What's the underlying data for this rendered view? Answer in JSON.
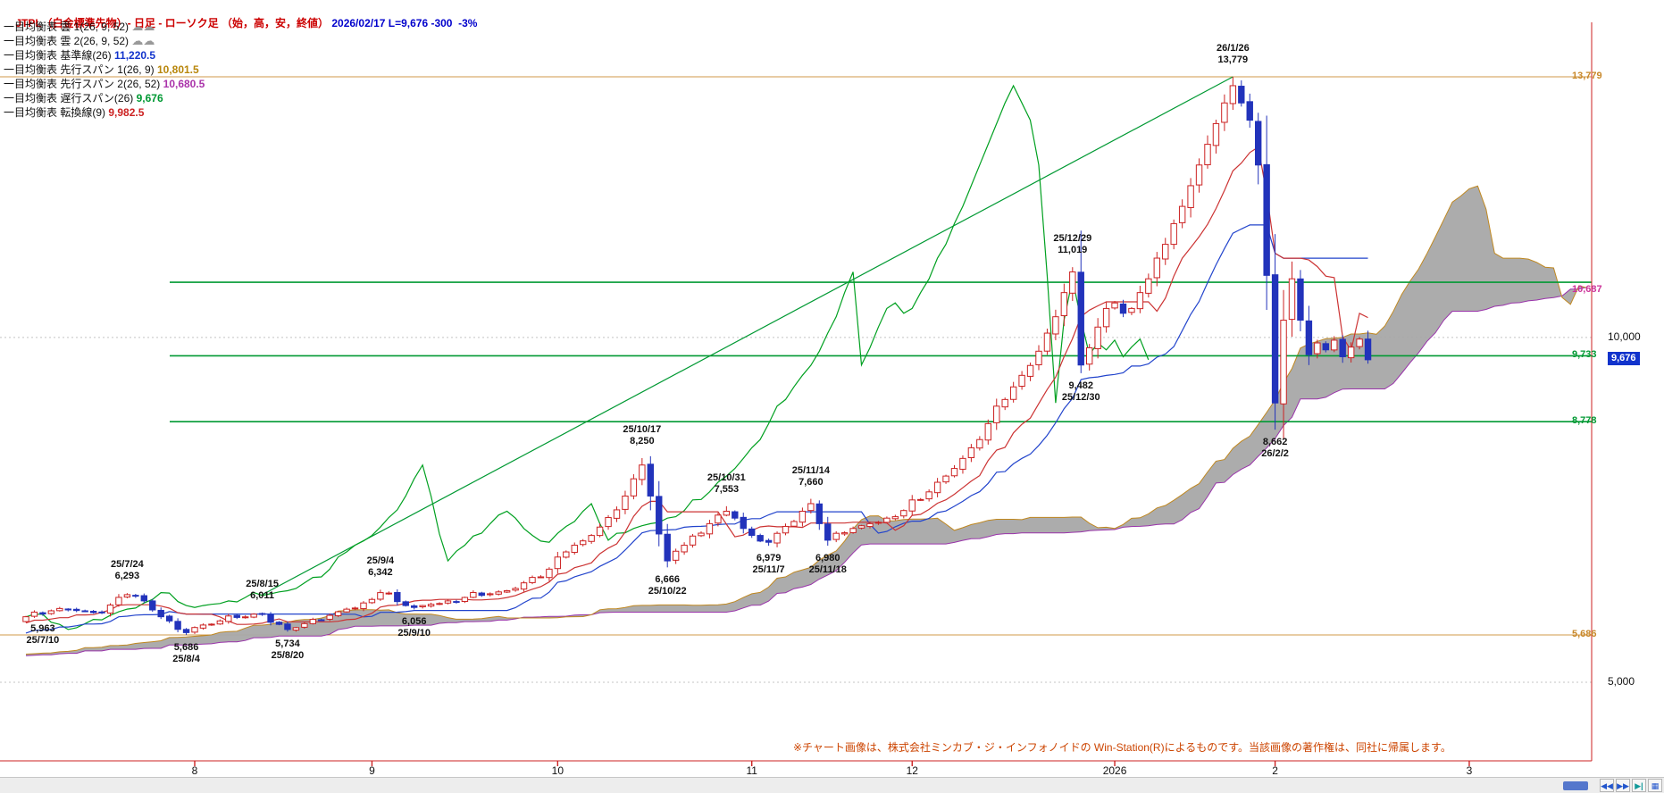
{
  "header": {
    "title_left": "JTPL（白金標準先物）- 日足 - ローソク足 （始，高，安，終値） ",
    "title_right": "2026/02/17 L=9,676 -300  -3%",
    "title_color": "#cc0000",
    "info_color": "#0000cc"
  },
  "legend": {
    "items": [
      {
        "label": "一目均衡表 雲 1(26, 9, 52) ",
        "value": "",
        "value_color": "#999999",
        "icon": "cloud"
      },
      {
        "label": "一目均衡表 雲 2(26, 9, 52) ",
        "value": "",
        "value_color": "#999999",
        "icon": "cloud"
      },
      {
        "label": "一目均衡表 基準線(26) ",
        "value": "11,220.5",
        "value_color": "#1133cc",
        "icon": ""
      },
      {
        "label": "一目均衡表 先行スパン 1(26, 9) ",
        "value": "10,801.5",
        "value_color": "#b8860b",
        "icon": ""
      },
      {
        "label": "一目均衡表 先行スパン 2(26, 52) ",
        "value": "10,680.5",
        "value_color": "#aa33aa",
        "icon": ""
      },
      {
        "label": "一目均衡表 遅行スパン(26) ",
        "value": "9,676",
        "value_color": "#009933",
        "icon": ""
      },
      {
        "label": "一目均衡表 転換線(9) ",
        "value": "9,982.5",
        "value_color": "#cc2222",
        "icon": ""
      }
    ]
  },
  "chart_data": {
    "type": "candlestick",
    "title": "JTPL 白金標準先物 日足 ローソク足",
    "indicator": "一目均衡表 (Ichimoku)",
    "ichimoku_params": {
      "tenkan": 9,
      "kijun": 26,
      "senkou_b": 52,
      "shift": 26
    },
    "last": {
      "date": "2026/02/17",
      "close": 9676,
      "change": -300,
      "change_pct": "-3%"
    },
    "days_total": 160,
    "future_days": 26,
    "colors": {
      "up_candle": "#cc2222",
      "down_candle": "#2233bb",
      "tenkan": "#cc3333",
      "kijun": "#2244cc",
      "chikou": "#00a020",
      "senkou_a": "#c08820",
      "senkou_b": "#9933aa",
      "cloud_fill": "#a8a8a8",
      "green_line": "#009933",
      "range_line": "#d29a4a",
      "axis_red": "#cc2222"
    },
    "y_axis": {
      "ticks": [
        {
          "label": "10,000",
          "price": 10000
        },
        {
          "label": "5,000",
          "price": 5000
        }
      ],
      "grid": "dotted"
    },
    "x_axis": {
      "ticks": [
        {
          "label": "8",
          "day": 20
        },
        {
          "label": "9",
          "day": 41
        },
        {
          "label": "10",
          "day": 63
        },
        {
          "label": "11",
          "day": 86
        },
        {
          "label": "12",
          "day": 105
        },
        {
          "label": "2026",
          "day": 129
        },
        {
          "label": "2",
          "day": 148
        },
        {
          "label": "3",
          "day": 171
        }
      ]
    },
    "range_lines": [
      {
        "price": 13779
      },
      {
        "price": 5686
      }
    ],
    "h_lines": [
      {
        "price": 10800
      },
      {
        "price": 9733
      },
      {
        "price": 8778
      }
    ],
    "trend_line": {
      "from_day": 28,
      "from_price": 6269,
      "to_day": 143,
      "to_price": 13779
    },
    "right_labels": [
      {
        "text": "13,779",
        "price": 13779,
        "color": "#c8882a",
        "col": "inner"
      },
      {
        "text": "10,687",
        "price": 10687,
        "color": "#cc3399",
        "col": "inner"
      },
      {
        "text": "10,000",
        "price": 10000,
        "color": "#111111",
        "col": "outer"
      },
      {
        "text": "9,676",
        "price": 9676,
        "color": "#ffffff",
        "bg": "#1133cc",
        "col": "outer"
      },
      {
        "text": "9,733",
        "price": 9733,
        "color": "#009933",
        "col": "inner"
      },
      {
        "text": "8,778",
        "price": 8778,
        "color": "#009933",
        "col": "inner"
      },
      {
        "text": "5,686",
        "price": 5686,
        "color": "#c8882a",
        "col": "inner"
      },
      {
        "text": "5,000",
        "price": 5000,
        "color": "#111111",
        "col": "outer"
      }
    ],
    "annotations": [
      {
        "day": 2,
        "price": 5963,
        "kind": "low",
        "price_label": "5,963",
        "date": "25/7/10"
      },
      {
        "day": 12,
        "price": 6293,
        "kind": "high",
        "price_label": "6,293",
        "date": "25/7/24"
      },
      {
        "day": 19,
        "price": 5686,
        "kind": "low",
        "price_label": "5,686",
        "date": "25/8/4"
      },
      {
        "day": 28,
        "price": 6011,
        "kind": "high",
        "price_label": "6,011",
        "date": "25/8/15"
      },
      {
        "day": 31,
        "price": 5734,
        "kind": "low",
        "price_label": "5,734",
        "date": "25/8/20"
      },
      {
        "day": 42,
        "price": 6342,
        "kind": "high",
        "price_label": "6,342",
        "date": "25/9/4"
      },
      {
        "day": 46,
        "price": 6056,
        "kind": "low",
        "price_label": "6,056",
        "date": "25/9/10"
      },
      {
        "day": 73,
        "price": 8250,
        "kind": "high",
        "price_label": "8,250",
        "date": "25/10/17"
      },
      {
        "day": 76,
        "price": 6666,
        "kind": "low",
        "price_label": "6,666",
        "date": "25/10/22"
      },
      {
        "day": 83,
        "price": 7553,
        "kind": "high",
        "price_label": "7,553",
        "date": "25/10/31"
      },
      {
        "day": 88,
        "price": 6979,
        "kind": "low",
        "price_label": "6,979",
        "date": "25/11/7"
      },
      {
        "day": 93,
        "price": 7660,
        "kind": "high",
        "price_label": "7,660",
        "date": "25/11/14"
      },
      {
        "day": 95,
        "price": 6980,
        "kind": "low",
        "price_label": "6,980",
        "date": "25/11/18"
      },
      {
        "day": 124,
        "price": 11019,
        "kind": "high",
        "price_label": "11,019",
        "date": "25/12/29"
      },
      {
        "day": 125,
        "price": 9482,
        "kind": "low",
        "price_label": "9,482",
        "date": "25/12/30"
      },
      {
        "day": 143,
        "price": 13779,
        "kind": "high",
        "price_label": "13,779",
        "date": "26/1/26"
      },
      {
        "day": 148,
        "price": 8662,
        "kind": "low",
        "price_label": "8,662",
        "date": "26/2/2"
      }
    ],
    "waypoints": [
      [
        0,
        5950
      ],
      [
        2,
        5990
      ],
      [
        4,
        6070
      ],
      [
        6,
        6040
      ],
      [
        8,
        6010
      ],
      [
        10,
        6120
      ],
      [
        12,
        6270
      ],
      [
        14,
        6180
      ],
      [
        16,
        5950
      ],
      [
        19,
        5720
      ],
      [
        21,
        5830
      ],
      [
        23,
        5890
      ],
      [
        25,
        5940
      ],
      [
        28,
        5985
      ],
      [
        29,
        5870
      ],
      [
        31,
        5765
      ],
      [
        33,
        5850
      ],
      [
        35,
        5905
      ],
      [
        38,
        6060
      ],
      [
        40,
        6150
      ],
      [
        42,
        6300
      ],
      [
        44,
        6170
      ],
      [
        46,
        6085
      ],
      [
        48,
        6130
      ],
      [
        50,
        6180
      ],
      [
        52,
        6230
      ],
      [
        54,
        6260
      ],
      [
        56,
        6310
      ],
      [
        58,
        6360
      ],
      [
        60,
        6520
      ],
      [
        62,
        6640
      ],
      [
        64,
        6890
      ],
      [
        66,
        7050
      ],
      [
        68,
        7250
      ],
      [
        70,
        7500
      ],
      [
        71,
        7700
      ],
      [
        72,
        7950
      ],
      [
        73,
        8150
      ],
      [
        74,
        7700
      ],
      [
        75,
        7150
      ],
      [
        76,
        6760
      ],
      [
        77,
        6900
      ],
      [
        79,
        7120
      ],
      [
        81,
        7300
      ],
      [
        83,
        7480
      ],
      [
        84,
        7380
      ],
      [
        85,
        7230
      ],
      [
        86,
        7130
      ],
      [
        88,
        7030
      ],
      [
        90,
        7260
      ],
      [
        92,
        7480
      ],
      [
        93,
        7590
      ],
      [
        94,
        7300
      ],
      [
        95,
        7060
      ],
      [
        96,
        7160
      ],
      [
        98,
        7230
      ],
      [
        100,
        7300
      ],
      [
        102,
        7380
      ],
      [
        104,
        7490
      ],
      [
        106,
        7650
      ],
      [
        108,
        7900
      ],
      [
        110,
        8100
      ],
      [
        112,
        8400
      ],
      [
        114,
        8750
      ],
      [
        116,
        9100
      ],
      [
        118,
        9450
      ],
      [
        120,
        9800
      ],
      [
        122,
        10300
      ],
      [
        123,
        10650
      ],
      [
        124,
        10950
      ],
      [
        125,
        9600
      ],
      [
        126,
        9850
      ],
      [
        127,
        10150
      ],
      [
        128,
        10420
      ],
      [
        129,
        10500
      ],
      [
        130,
        10350
      ],
      [
        131,
        10420
      ],
      [
        132,
        10650
      ],
      [
        133,
        10850
      ],
      [
        134,
        11150
      ],
      [
        135,
        11350
      ],
      [
        136,
        11650
      ],
      [
        137,
        11900
      ],
      [
        138,
        12200
      ],
      [
        139,
        12500
      ],
      [
        140,
        12800
      ],
      [
        141,
        13100
      ],
      [
        142,
        13400
      ],
      [
        143,
        13650
      ],
      [
        144,
        13400
      ],
      [
        145,
        13150
      ],
      [
        146,
        12500
      ],
      [
        147,
        10900
      ],
      [
        148,
        9050
      ],
      [
        149,
        10250
      ],
      [
        150,
        10850
      ],
      [
        151,
        10250
      ],
      [
        152,
        9750
      ],
      [
        153,
        9920
      ],
      [
        154,
        9820
      ],
      [
        155,
        9960
      ],
      [
        156,
        9720
      ],
      [
        157,
        9860
      ],
      [
        158,
        9976
      ],
      [
        159,
        9676
      ]
    ]
  },
  "footer": {
    "copyright": "※チャート画像は、株式会社ミンカブ・ジ・インフォノイドの Win-Station(R)によるものです。当該画像の著作権は、同社に帰属します。",
    "color": "#cc4400"
  },
  "scrollbar": {
    "buttons": [
      {
        "name": "scroll-fast-left-button",
        "glyph": "◀◀",
        "alt": false
      },
      {
        "name": "scroll-fast-right-button",
        "glyph": "▶▶",
        "alt": false
      },
      {
        "name": "scroll-end-button",
        "glyph": "▶|",
        "alt": true
      },
      {
        "name": "chart-grid-button",
        "glyph": "▦",
        "alt": false
      }
    ]
  }
}
